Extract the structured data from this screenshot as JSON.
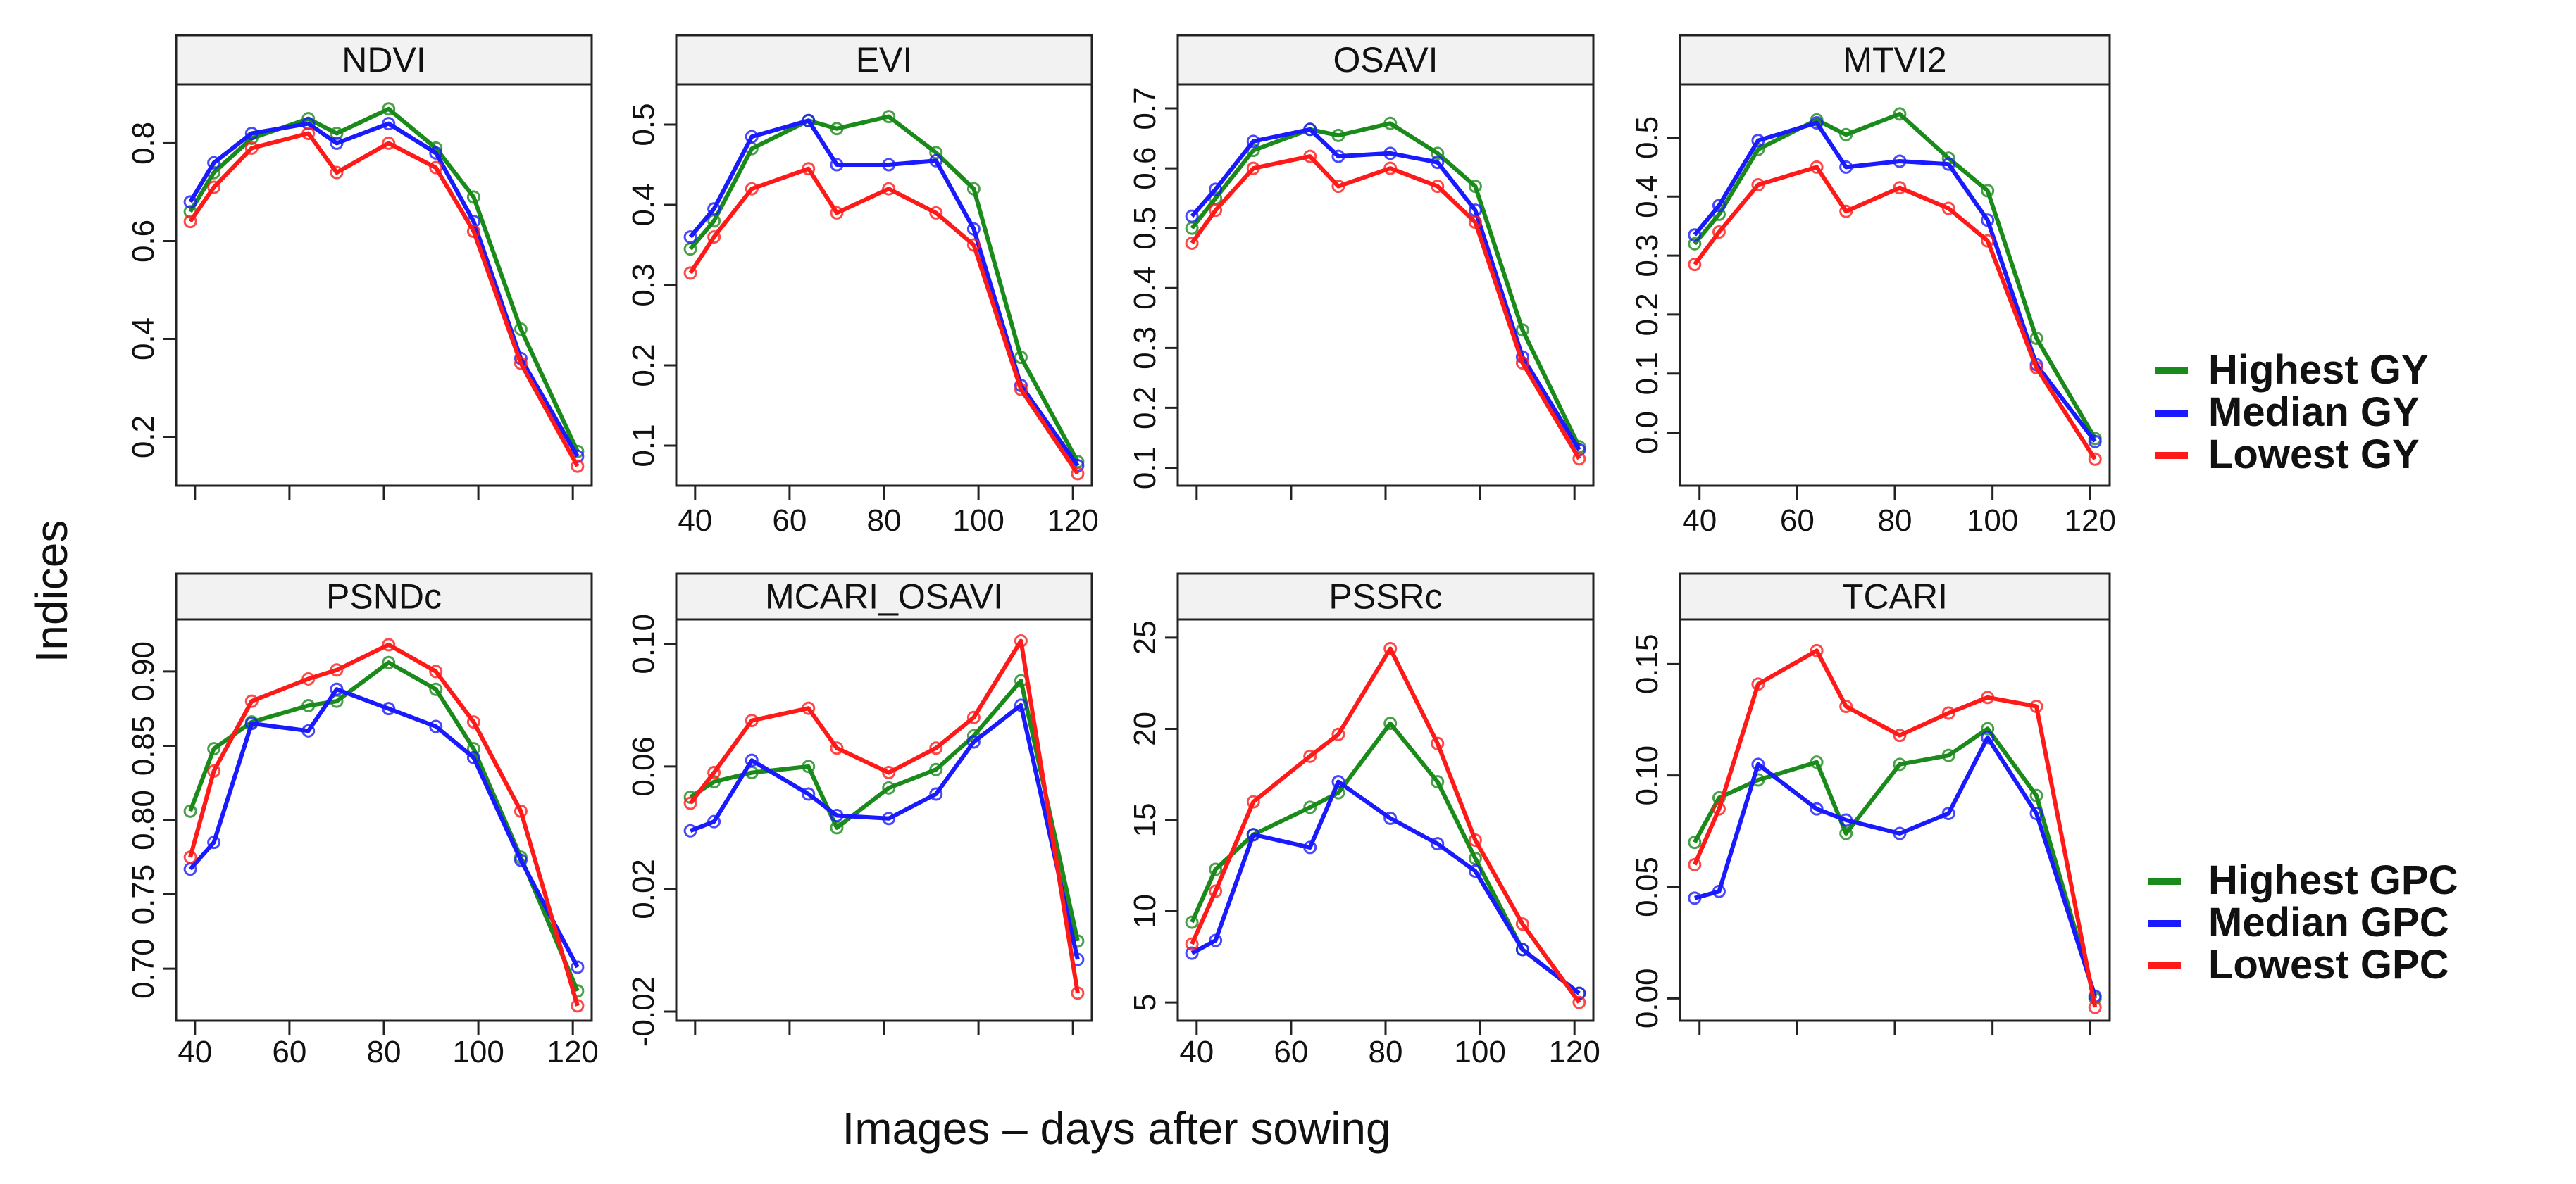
{
  "figure": {
    "y_title": "Indices",
    "x_title": "Images – days after sowing"
  },
  "legends": [
    {
      "items": [
        {
          "label": "Highest GY",
          "color": "#1a8a1a"
        },
        {
          "label": "Median GY",
          "color": "#1a1aff"
        },
        {
          "label": "Lowest GY",
          "color": "#ff1a1a"
        }
      ]
    },
    {
      "items": [
        {
          "label": "Highest GPC",
          "color": "#1a8a1a"
        },
        {
          "label": "Median GPC",
          "color": "#1a1aff"
        },
        {
          "label": "Lowest GPC",
          "color": "#ff1a1a"
        }
      ]
    }
  ],
  "chart_data": [
    {
      "type": "line",
      "title": "NDVI",
      "x": [
        39,
        44,
        52,
        64,
        70,
        81,
        91,
        99,
        109,
        121
      ],
      "xlim": [
        36,
        124
      ],
      "ylim": [
        0.1,
        0.92
      ],
      "yticks": [
        0.2,
        0.4,
        0.6,
        0.8
      ],
      "ytick_labels": [
        "0.2",
        "0.4",
        "0.6",
        "0.8"
      ],
      "xticks": [
        40,
        60,
        80,
        100,
        120
      ],
      "xtick_labels": [],
      "series": [
        {
          "name": "Highest GY",
          "values": [
            0.66,
            0.74,
            0.81,
            0.85,
            0.82,
            0.87,
            0.79,
            0.69,
            0.42,
            0.17
          ]
        },
        {
          "name": "Median GY",
          "values": [
            0.68,
            0.76,
            0.82,
            0.84,
            0.8,
            0.84,
            0.78,
            0.64,
            0.36,
            0.16
          ]
        },
        {
          "name": "Lowest GY",
          "values": [
            0.64,
            0.71,
            0.79,
            0.82,
            0.74,
            0.8,
            0.75,
            0.62,
            0.35,
            0.14
          ]
        }
      ]
    },
    {
      "type": "line",
      "title": "EVI",
      "x": [
        39,
        44,
        52,
        64,
        70,
        81,
        91,
        99,
        109,
        121
      ],
      "xlim": [
        36,
        124
      ],
      "ylim": [
        0.05,
        0.55
      ],
      "yticks": [
        0.1,
        0.2,
        0.3,
        0.4,
        0.5
      ],
      "ytick_labels": [
        "0.1",
        "0.2",
        "0.3",
        "0.4",
        "0.5"
      ],
      "xticks": [
        40,
        60,
        80,
        100,
        120
      ],
      "xtick_labels": [
        "40",
        "60",
        "80",
        "100",
        "120"
      ],
      "series": [
        {
          "name": "Highest GY",
          "values": [
            0.345,
            0.38,
            0.47,
            0.505,
            0.495,
            0.51,
            0.465,
            0.42,
            0.21,
            0.08
          ]
        },
        {
          "name": "Median GY",
          "values": [
            0.36,
            0.395,
            0.485,
            0.505,
            0.45,
            0.45,
            0.455,
            0.37,
            0.175,
            0.075
          ]
        },
        {
          "name": "Lowest GY",
          "values": [
            0.315,
            0.36,
            0.42,
            0.445,
            0.39,
            0.42,
            0.39,
            0.35,
            0.17,
            0.065
          ]
        }
      ]
    },
    {
      "type": "line",
      "title": "OSAVI",
      "x": [
        39,
        44,
        52,
        64,
        70,
        81,
        91,
        99,
        109,
        121
      ],
      "xlim": [
        36,
        124
      ],
      "ylim": [
        0.07,
        0.74
      ],
      "yticks": [
        0.1,
        0.2,
        0.3,
        0.4,
        0.5,
        0.6,
        0.7
      ],
      "ytick_labels": [
        "0.1",
        "0.2",
        "0.3",
        "0.4",
        "0.5",
        "0.6",
        "0.7"
      ],
      "xticks": [
        40,
        60,
        80,
        100,
        120
      ],
      "xtick_labels": [],
      "series": [
        {
          "name": "Highest GY",
          "values": [
            0.5,
            0.55,
            0.63,
            0.665,
            0.655,
            0.675,
            0.625,
            0.57,
            0.33,
            0.135
          ]
        },
        {
          "name": "Median GY",
          "values": [
            0.52,
            0.565,
            0.645,
            0.665,
            0.62,
            0.625,
            0.61,
            0.53,
            0.285,
            0.13
          ]
        },
        {
          "name": "Lowest GY",
          "values": [
            0.475,
            0.53,
            0.6,
            0.62,
            0.57,
            0.6,
            0.57,
            0.51,
            0.275,
            0.115
          ]
        }
      ]
    },
    {
      "type": "line",
      "title": "MTVI2",
      "x": [
        39,
        44,
        52,
        64,
        70,
        81,
        91,
        99,
        109,
        121
      ],
      "xlim": [
        36,
        124
      ],
      "ylim": [
        -0.09,
        0.59
      ],
      "yticks": [
        0.0,
        0.1,
        0.2,
        0.3,
        0.4,
        0.5
      ],
      "ytick_labels": [
        "0.0",
        "0.1",
        "0.2",
        "0.3",
        "0.4",
        "0.5"
      ],
      "xticks": [
        40,
        60,
        80,
        100,
        120
      ],
      "xtick_labels": [
        "40",
        "60",
        "80",
        "100",
        "120"
      ],
      "series": [
        {
          "name": "Highest GY",
          "values": [
            0.32,
            0.37,
            0.48,
            0.53,
            0.505,
            0.54,
            0.465,
            0.41,
            0.16,
            -0.01
          ]
        },
        {
          "name": "Median GY",
          "values": [
            0.335,
            0.385,
            0.495,
            0.525,
            0.45,
            0.46,
            0.455,
            0.36,
            0.115,
            -0.015
          ]
        },
        {
          "name": "Lowest GY",
          "values": [
            0.285,
            0.34,
            0.42,
            0.45,
            0.375,
            0.415,
            0.38,
            0.325,
            0.11,
            -0.045
          ]
        }
      ]
    },
    {
      "type": "line",
      "title": "PSNDc",
      "x": [
        39,
        44,
        52,
        64,
        70,
        81,
        91,
        99,
        109,
        121
      ],
      "xlim": [
        36,
        124
      ],
      "ylim": [
        0.665,
        0.935
      ],
      "yticks": [
        0.7,
        0.75,
        0.8,
        0.85,
        0.9
      ],
      "ytick_labels": [
        "0.70",
        "0.75",
        "0.80",
        "0.85",
        "0.90"
      ],
      "xticks": [
        40,
        60,
        80,
        100,
        120
      ],
      "xtick_labels": [
        "40",
        "60",
        "80",
        "100",
        "120"
      ],
      "series": [
        {
          "name": "Highest GPC",
          "values": [
            0.806,
            0.848,
            0.866,
            0.877,
            0.88,
            0.906,
            0.888,
            0.848,
            0.775,
            0.685
          ]
        },
        {
          "name": "Median GPC",
          "values": [
            0.767,
            0.785,
            0.865,
            0.86,
            0.888,
            0.875,
            0.863,
            0.842,
            0.773,
            0.701
          ]
        },
        {
          "name": "Lowest GPC",
          "values": [
            0.775,
            0.833,
            0.88,
            0.895,
            0.901,
            0.918,
            0.9,
            0.866,
            0.806,
            0.675
          ]
        }
      ]
    },
    {
      "type": "line",
      "title": "MCARI_OSAVI",
      "x": [
        39,
        44,
        52,
        64,
        70,
        81,
        91,
        99,
        109,
        121
      ],
      "xlim": [
        36,
        124
      ],
      "ylim": [
        -0.023,
        0.108
      ],
      "yticks": [
        -0.02,
        0.02,
        0.06,
        0.1
      ],
      "ytick_labels": [
        "-0.02",
        "0.02",
        "0.06",
        "0.10"
      ],
      "xticks": [
        40,
        60,
        80,
        100,
        120
      ],
      "xtick_labels": [],
      "series": [
        {
          "name": "Highest GPC",
          "values": [
            0.05,
            0.055,
            0.058,
            0.06,
            0.04,
            0.053,
            0.059,
            0.07,
            0.088,
            0.003
          ]
        },
        {
          "name": "Median GPC",
          "values": [
            0.039,
            0.042,
            0.062,
            0.051,
            0.044,
            0.043,
            0.051,
            0.068,
            0.08,
            -0.003
          ]
        },
        {
          "name": "Lowest GPC",
          "values": [
            0.048,
            0.058,
            0.075,
            0.079,
            0.066,
            0.058,
            0.066,
            0.076,
            0.101,
            -0.014
          ]
        }
      ]
    },
    {
      "type": "line",
      "title": "PSSRc",
      "x": [
        39,
        44,
        52,
        64,
        70,
        81,
        91,
        99,
        109,
        121
      ],
      "xlim": [
        36,
        124
      ],
      "ylim": [
        4.0,
        26.0
      ],
      "yticks": [
        5,
        10,
        15,
        20,
        25
      ],
      "ytick_labels": [
        "5",
        "10",
        "15",
        "20",
        "25"
      ],
      "xticks": [
        40,
        60,
        80,
        100,
        120
      ],
      "xtick_labels": [
        "40",
        "60",
        "80",
        "100",
        "120"
      ],
      "series": [
        {
          "name": "Highest GPC",
          "values": [
            9.4,
            12.3,
            14.2,
            15.7,
            16.5,
            20.3,
            17.1,
            12.9,
            7.9,
            5.5
          ]
        },
        {
          "name": "Median GPC",
          "values": [
            7.7,
            8.4,
            14.2,
            13.5,
            17.1,
            15.1,
            13.7,
            12.2,
            7.9,
            5.5
          ]
        },
        {
          "name": "Lowest GPC",
          "values": [
            8.2,
            11.1,
            16.0,
            18.5,
            19.7,
            24.4,
            19.2,
            13.9,
            9.3,
            5.0
          ]
        }
      ]
    },
    {
      "type": "line",
      "title": "TCARI",
      "x": [
        39,
        44,
        52,
        64,
        70,
        81,
        91,
        99,
        109,
        121
      ],
      "xlim": [
        36,
        124
      ],
      "ylim": [
        -0.01,
        0.17
      ],
      "yticks": [
        0.0,
        0.05,
        0.1,
        0.15
      ],
      "ytick_labels": [
        "0.00",
        "0.05",
        "0.10",
        "0.15"
      ],
      "xticks": [
        40,
        60,
        80,
        100,
        120
      ],
      "xtick_labels": [],
      "series": [
        {
          "name": "Highest GPC",
          "values": [
            0.07,
            0.09,
            0.098,
            0.106,
            0.074,
            0.105,
            0.109,
            0.121,
            0.091,
            0.0
          ]
        },
        {
          "name": "Median GPC",
          "values": [
            0.045,
            0.048,
            0.105,
            0.085,
            0.08,
            0.074,
            0.083,
            0.117,
            0.083,
            0.001
          ]
        },
        {
          "name": "Lowest GPC",
          "values": [
            0.06,
            0.085,
            0.141,
            0.156,
            0.131,
            0.118,
            0.128,
            0.135,
            0.131,
            -0.004
          ]
        }
      ]
    }
  ]
}
